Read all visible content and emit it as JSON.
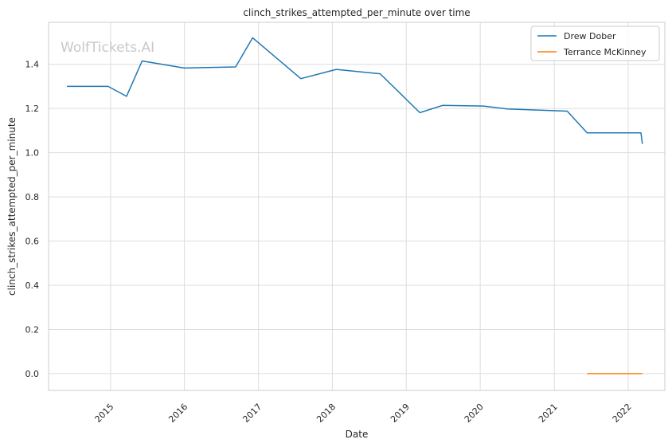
{
  "chart_data": {
    "type": "line",
    "title": "clinch_strikes_attempted_per_minute over time",
    "xlabel": "Date",
    "ylabel": "clinch_strikes_attempted_per_minute",
    "x_ticks": [
      "2015",
      "2016",
      "2017",
      "2018",
      "2019",
      "2020",
      "2021",
      "2022"
    ],
    "y_ticks": [
      "0.0",
      "0.2",
      "0.4",
      "0.6",
      "0.8",
      "1.0",
      "1.2",
      "1.4"
    ],
    "xlim": [
      "2014-03-01",
      "2022-07-01"
    ],
    "ylim": [
      -0.076,
      1.59
    ],
    "grid": true,
    "legend_position": "top-right",
    "watermark": "WolfTickets.AI",
    "series": [
      {
        "name": "Drew Dober",
        "color": "#1f77b4",
        "points": [
          {
            "x": "2014-05-31",
            "y": 1.3
          },
          {
            "x": "2014-12-20",
            "y": 1.3
          },
          {
            "x": "2015-03-21",
            "y": 1.255
          },
          {
            "x": "2015-06-06",
            "y": 1.415
          },
          {
            "x": "2015-12-31",
            "y": 1.383
          },
          {
            "x": "2016-09-10",
            "y": 1.388
          },
          {
            "x": "2016-12-03",
            "y": 1.52
          },
          {
            "x": "2017-07-29",
            "y": 1.335
          },
          {
            "x": "2018-01-20",
            "y": 1.377
          },
          {
            "x": "2018-08-25",
            "y": 1.357
          },
          {
            "x": "2019-03-09",
            "y": 1.181
          },
          {
            "x": "2019-06-29",
            "y": 1.214
          },
          {
            "x": "2020-01-18",
            "y": 1.211
          },
          {
            "x": "2020-05-13",
            "y": 1.198
          },
          {
            "x": "2021-03-06",
            "y": 1.188
          },
          {
            "x": "2021-06-12",
            "y": 1.09
          },
          {
            "x": "2022-03-05",
            "y": 1.09
          },
          {
            "x": "2022-03-12",
            "y": 1.04
          }
        ]
      },
      {
        "name": "Terrance McKinney",
        "color": "#ff7f0e",
        "points": [
          {
            "x": "2021-06-12",
            "y": 0.0
          },
          {
            "x": "2022-03-12",
            "y": 0.0
          }
        ]
      }
    ]
  }
}
